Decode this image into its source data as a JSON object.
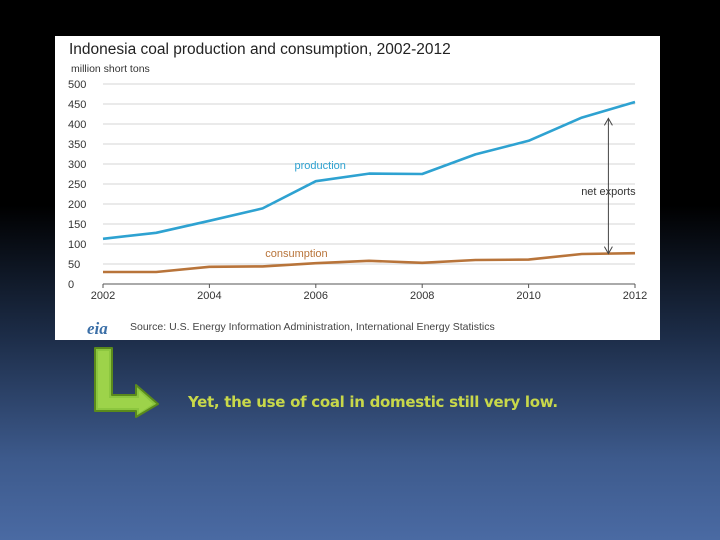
{
  "slide": {
    "caption": "Yet, the use of coal  in domestic still very low."
  },
  "chart_data": {
    "type": "line",
    "title": "Indonesia coal production and consumption, 2002-2012",
    "ylabel": "million short tons",
    "xlabel": "",
    "x_ticks": [
      2002,
      2004,
      2006,
      2008,
      2010,
      2012
    ],
    "y_ticks": [
      0,
      50,
      100,
      150,
      200,
      250,
      300,
      350,
      400,
      450,
      500
    ],
    "ylim": [
      0,
      500
    ],
    "xlim": [
      2002,
      2012
    ],
    "grid": true,
    "series": [
      {
        "name": "production",
        "color": "#2ea2d1",
        "x": [
          2002,
          2003,
          2004,
          2005,
          2006,
          2007,
          2008,
          2009,
          2010,
          2011,
          2012
        ],
        "values": [
          113,
          128,
          158,
          189,
          257,
          276,
          275,
          324,
          358,
          416,
          455
        ]
      },
      {
        "name": "consumption",
        "color": "#b8743a",
        "x": [
          2002,
          2003,
          2004,
          2005,
          2006,
          2007,
          2008,
          2009,
          2010,
          2011,
          2012
        ],
        "values": [
          30,
          30,
          43,
          44,
          52,
          58,
          53,
          60,
          61,
          75,
          77
        ]
      }
    ],
    "annotation": {
      "label": "net exports",
      "year": 2011.5
    },
    "source": "Source: U.S. Energy Information  Administration, International  Energy Statistics",
    "logo": "eia"
  }
}
